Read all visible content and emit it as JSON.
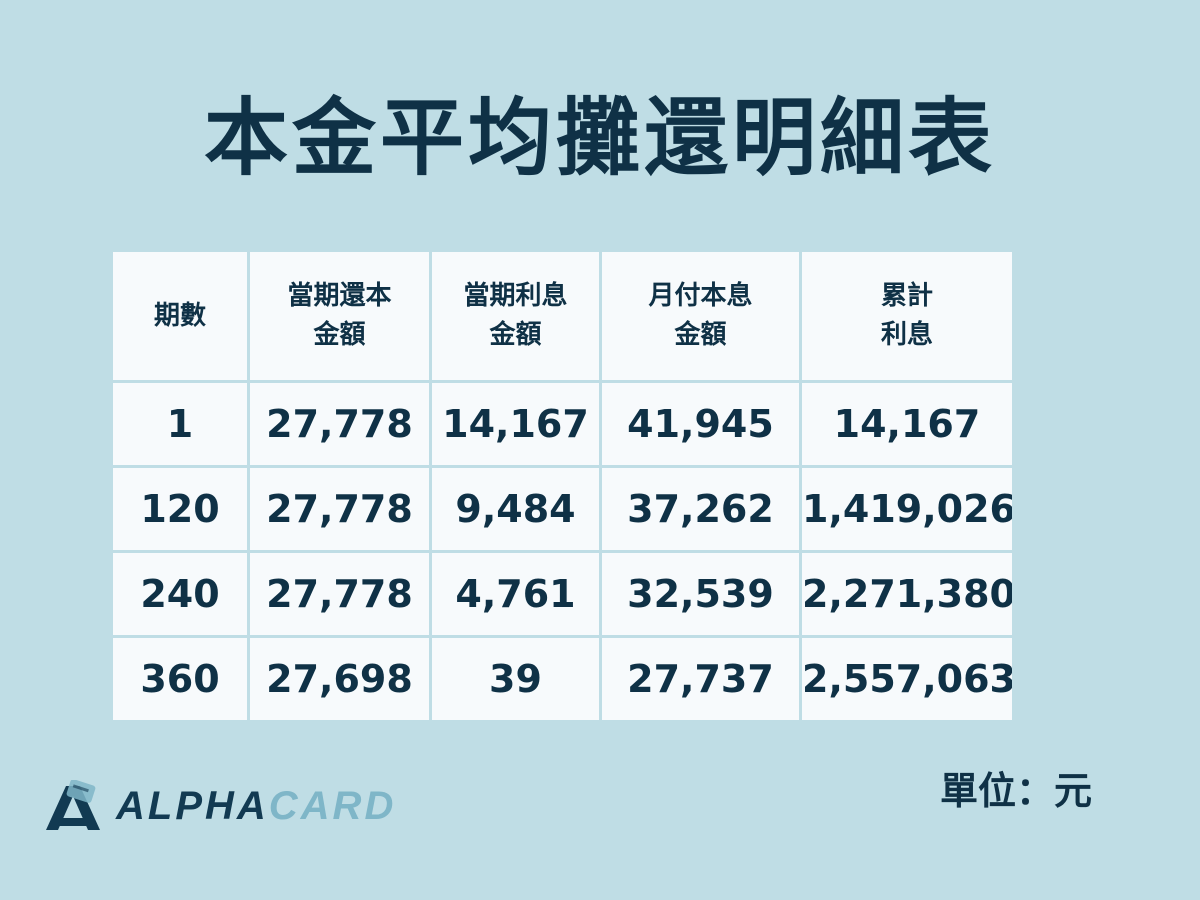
{
  "title": "本金平均攤還明細表",
  "table": {
    "headers": [
      [
        "期數"
      ],
      [
        "當期還本",
        "金額"
      ],
      [
        "當期利息",
        "金額"
      ],
      [
        "月付本息",
        "金額"
      ],
      [
        "累計",
        "利息"
      ]
    ],
    "rows": [
      [
        "1",
        "27,778",
        "14,167",
        "41,945",
        "14,167"
      ],
      [
        "120",
        "27,778",
        "9,484",
        "37,262",
        "1,419,026"
      ],
      [
        "240",
        "27,778",
        "4,761",
        "32,539",
        "2,271,380"
      ],
      [
        "360",
        "27,698",
        "39",
        "27,737",
        "2,557,063"
      ]
    ]
  },
  "unit_label": "單位：元",
  "brand": {
    "alpha": "ALPHA",
    "card": "CARD",
    "icon": "alphacard-logo-icon"
  },
  "colors": {
    "background": "#bfdde5",
    "text": "#0f3146",
    "cell": "#f7fafc",
    "brand_light": "#7fb6c8"
  }
}
